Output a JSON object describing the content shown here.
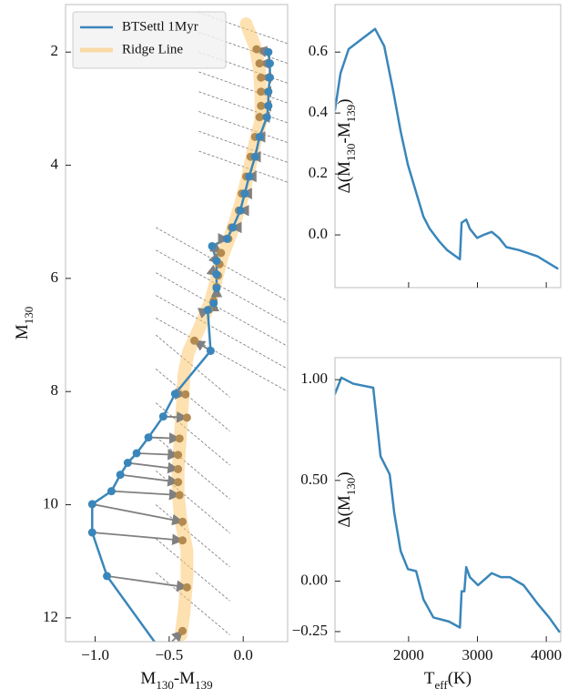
{
  "chart_data": [
    {
      "type": "line",
      "xlabel": [
        {
          "text": "M"
        },
        {
          "text": "130",
          "sub": true
        },
        {
          "text": "-M"
        },
        {
          "text": "139",
          "sub": true
        }
      ],
      "ylabel": [
        {
          "text": "M"
        },
        {
          "text": "130",
          "sub": true
        }
      ],
      "xlim": [
        -1.2,
        0.3
      ],
      "ylim": [
        1.16,
        12.42
      ],
      "y_inverted": true,
      "xticks": [
        {
          "value": -1,
          "label": "−1.0"
        },
        {
          "value": -0.5,
          "label": "−0.5"
        },
        {
          "value": 0,
          "label": "0.0"
        }
      ],
      "yticks": [
        2,
        4,
        6,
        8,
        10,
        12
      ],
      "legend": "upper left",
      "series": [
        {
          "name": "BTSettl 1Myr",
          "color": "#3a86ba",
          "markers": true,
          "x": [
            0.17,
            0.18,
            0.18,
            0.17,
            0.17,
            0.16,
            0.11,
            0.08,
            0.04,
            0.01,
            -0.02,
            -0.07,
            -0.11,
            -0.21,
            -0.18,
            -0.18,
            -0.18,
            -0.2,
            -0.24,
            -0.22,
            -0.46,
            -0.54,
            -0.64,
            -0.72,
            -0.78,
            -0.83,
            -0.89,
            -1.02,
            -1.02,
            -0.92,
            -0.55
          ],
          "y": [
            2.0,
            2.2,
            2.45,
            2.7,
            2.95,
            3.15,
            3.5,
            3.85,
            4.2,
            4.5,
            4.8,
            5.1,
            5.3,
            5.43,
            5.69,
            5.93,
            6.17,
            6.44,
            6.56,
            7.28,
            8.04,
            8.44,
            8.81,
            9.09,
            9.26,
            9.47,
            9.76,
            9.99,
            10.49,
            11.26,
            12.6
          ]
        },
        {
          "name": "Ridge Line",
          "color": "#fcc871",
          "markers": false,
          "x": [
            0.02,
            0.08,
            0.11,
            0.12,
            0.12,
            0.08,
            0.03,
            -0.02,
            -0.08,
            -0.14,
            -0.18,
            -0.22,
            -0.3,
            -0.37,
            -0.4,
            -0.41,
            -0.42,
            -0.43,
            -0.44,
            -0.44,
            -0.42,
            -0.38,
            -0.38,
            -0.4,
            -0.42
          ],
          "y": [
            1.5,
            1.9,
            2.3,
            2.8,
            3.2,
            3.6,
            4.2,
            4.7,
            5.2,
            5.6,
            6.0,
            6.4,
            6.9,
            7.3,
            7.7,
            8.2,
            8.6,
            9.0,
            9.4,
            9.8,
            10.3,
            10.8,
            11.3,
            11.9,
            12.3
          ]
        }
      ],
      "arrows": {
        "color": "#808080",
        "marker_color": "#b38a4f",
        "to_x": [
          0.09,
          0.11,
          0.12,
          0.12,
          0.12,
          0.11,
          0.08,
          0.05,
          0.02,
          -0.01,
          -0.03,
          -0.08,
          -0.1,
          -0.15,
          -0.16,
          -0.17,
          -0.18,
          -0.2,
          -0.23,
          -0.33,
          -0.39,
          -0.38,
          -0.43,
          -0.44,
          -0.44,
          -0.44,
          -0.43,
          -0.41,
          -0.41,
          -0.38,
          -0.41
        ],
        "to_y": [
          1.95,
          2.2,
          2.45,
          2.7,
          2.95,
          3.15,
          3.5,
          3.85,
          4.2,
          4.5,
          4.8,
          5.1,
          5.3,
          5.55,
          5.75,
          5.95,
          6.15,
          6.4,
          6.55,
          7.1,
          8.05,
          8.46,
          8.83,
          9.12,
          9.37,
          9.6,
          9.83,
          10.3,
          10.63,
          11.46,
          12.23
        ]
      },
      "guide_lines": {
        "color": "#777777",
        "segments": [
          [
            -0.3,
            1.3,
            0.3,
            1.85
          ],
          [
            -0.3,
            1.65,
            0.3,
            2.2
          ],
          [
            -0.3,
            2.0,
            0.3,
            2.55
          ],
          [
            -0.3,
            2.35,
            0.3,
            2.9
          ],
          [
            -0.3,
            2.7,
            0.3,
            3.25
          ],
          [
            -0.3,
            3.05,
            0.3,
            3.6
          ],
          [
            -0.3,
            3.4,
            0.3,
            3.95
          ],
          [
            -0.3,
            3.75,
            0.3,
            4.3
          ],
          [
            -0.59,
            5.1,
            0.3,
            6.4
          ],
          [
            -0.59,
            5.5,
            0.3,
            6.8
          ],
          [
            -0.59,
            5.9,
            0.3,
            7.2
          ],
          [
            -0.59,
            6.3,
            0.3,
            7.6
          ],
          [
            -0.59,
            6.7,
            0.3,
            8.0
          ],
          [
            -0.59,
            7.0,
            -0.09,
            8.1
          ],
          [
            -0.59,
            7.6,
            -0.09,
            8.7
          ],
          [
            -0.59,
            8.2,
            -0.09,
            9.3
          ],
          [
            -0.59,
            8.8,
            -0.09,
            9.9
          ],
          [
            -0.59,
            9.4,
            -0.09,
            10.5
          ],
          [
            -0.59,
            10.0,
            -0.09,
            11.1
          ],
          [
            -0.59,
            10.6,
            -0.09,
            11.7
          ],
          [
            -0.59,
            11.2,
            -0.09,
            12.3
          ]
        ]
      }
    },
    {
      "type": "line",
      "ylabel": [
        {
          "text": "Δ(M"
        },
        {
          "text": "130",
          "sub": true
        },
        {
          "text": "-M"
        },
        {
          "text": "139",
          "sub": true
        },
        {
          "text": ")"
        }
      ],
      "xlim": [
        930,
        4210
      ],
      "ylim": [
        -0.173,
        0.756
      ],
      "xticks": [
        2000,
        3000,
        4000
      ],
      "xtick_labels": false,
      "yticks": [
        {
          "value": 0.6,
          "label": "0.6"
        },
        {
          "value": 0.4,
          "label": "0.4"
        },
        {
          "value": 0.2,
          "label": "0.2"
        },
        {
          "value": 0,
          "label": "0.0"
        }
      ],
      "series": [
        {
          "color": "#3a86ba",
          "x": [
            930,
            1010,
            1129,
            1513,
            1645,
            1778,
            1884,
            1990,
            2109,
            2215,
            2307,
            2440,
            2560,
            2745,
            2770,
            2837,
            2890,
            2996,
            3089,
            3208,
            3314,
            3420,
            3605,
            3870,
            4162
          ],
          "y": [
            0.41,
            0.53,
            0.61,
            0.676,
            0.62,
            0.47,
            0.34,
            0.23,
            0.14,
            0.06,
            0.02,
            -0.02,
            -0.05,
            -0.08,
            0.04,
            0.05,
            0.02,
            -0.01,
            0.0,
            0.01,
            -0.01,
            -0.04,
            -0.05,
            -0.07,
            -0.11
          ]
        }
      ]
    },
    {
      "type": "line",
      "ylabel": [
        {
          "text": "Δ(M"
        },
        {
          "text": "130",
          "sub": true
        },
        {
          "text": ")"
        }
      ],
      "xlabel": [
        {
          "text": "T"
        },
        {
          "text": "eff",
          "sub": true
        },
        {
          "text": "(K)"
        }
      ],
      "xlim": [
        930,
        4210
      ],
      "ylim": [
        -0.3,
        1.109
      ],
      "xticks": [
        2000,
        3000,
        4000
      ],
      "xtick_labels": true,
      "yticks": [
        {
          "value": 1,
          "label": "1.00"
        },
        {
          "value": 0.5,
          "label": "0.50"
        },
        {
          "value": 0,
          "label": "0.00"
        },
        {
          "value": -0.25,
          "label": "−0.25"
        }
      ],
      "series": [
        {
          "color": "#3a86ba",
          "x": [
            930,
            1023,
            1195,
            1486,
            1592,
            1725,
            1791,
            1884,
            1990,
            2109,
            2215,
            2360,
            2586,
            2745,
            2770,
            2810,
            2837,
            2890,
            3009,
            3208,
            3341,
            3473,
            3671,
            3870,
            4042,
            4188
          ],
          "y": [
            0.93,
            1.01,
            0.98,
            0.96,
            0.62,
            0.53,
            0.34,
            0.15,
            0.06,
            0.05,
            -0.09,
            -0.18,
            -0.2,
            -0.23,
            -0.05,
            -0.05,
            0.07,
            0.02,
            -0.02,
            0.04,
            0.02,
            0.02,
            -0.02,
            -0.11,
            -0.18,
            -0.25
          ]
        }
      ]
    }
  ]
}
